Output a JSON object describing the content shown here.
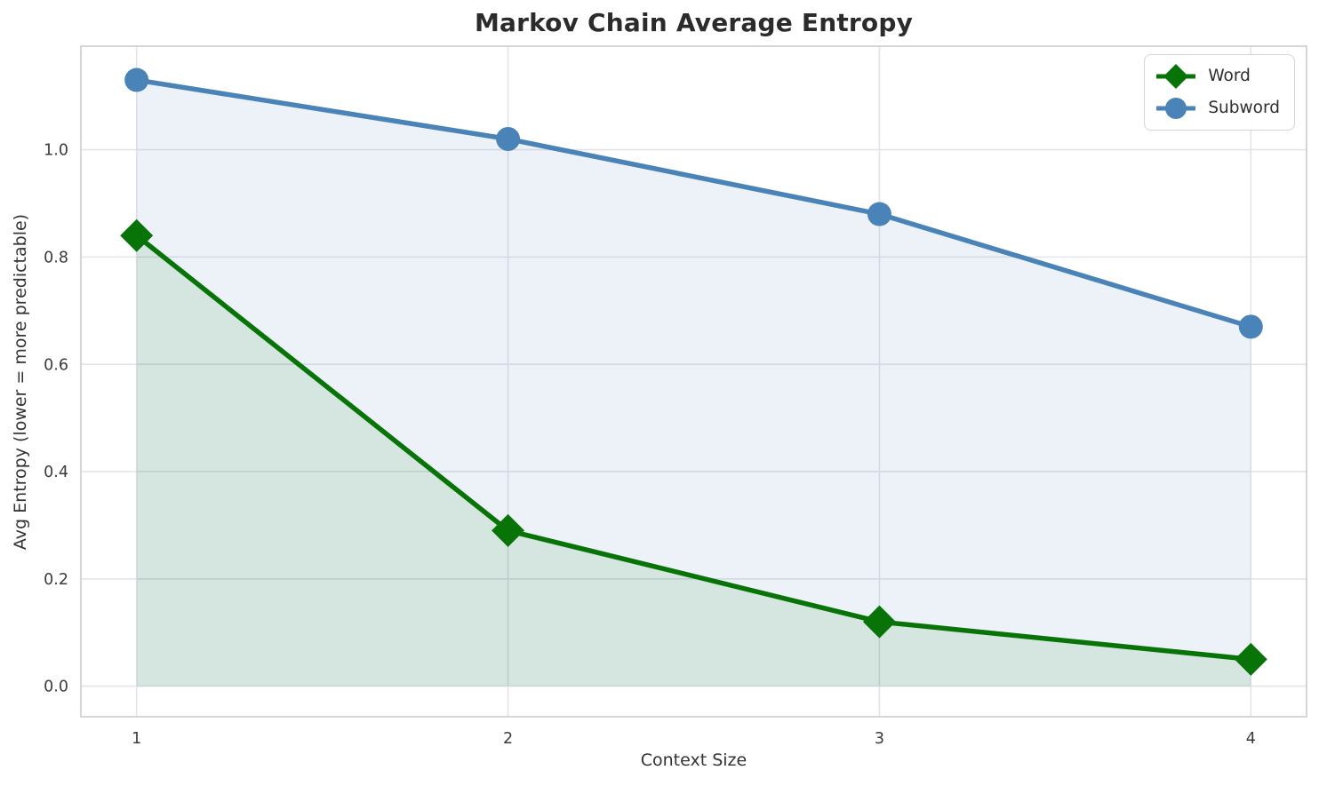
{
  "chart_data": {
    "type": "line",
    "title": "Markov Chain Average Entropy",
    "xlabel": "Context Size",
    "ylabel": "Avg Entropy (lower = more predictable)",
    "x": [
      1,
      2,
      3,
      4
    ],
    "series": [
      {
        "name": "Word",
        "color": "#087408",
        "marker": "diamond",
        "values": [
          0.84,
          0.29,
          0.12,
          0.05
        ],
        "fill_to_zero": true,
        "fill_opacity": 0.1
      },
      {
        "name": "Subword",
        "color": "#4983b8",
        "marker": "circle",
        "values": [
          1.13,
          1.02,
          0.88,
          0.67
        ],
        "fill_to_zero": true,
        "fill_opacity": 0.1
      }
    ],
    "xticks": [
      "1",
      "2",
      "3",
      "4"
    ],
    "yticks": [
      "0.0",
      "0.2",
      "0.4",
      "0.6",
      "0.8",
      "1.0"
    ],
    "xlim": [
      0.85,
      4.15
    ],
    "ylim": [
      -0.057,
      1.193
    ],
    "grid": true,
    "legend_position": "top-right",
    "colors": {
      "grid": "#e4e4ea",
      "spine": "#cccccf",
      "tick_text": "#3a3a3a",
      "title_text": "#2b2b2b"
    }
  }
}
